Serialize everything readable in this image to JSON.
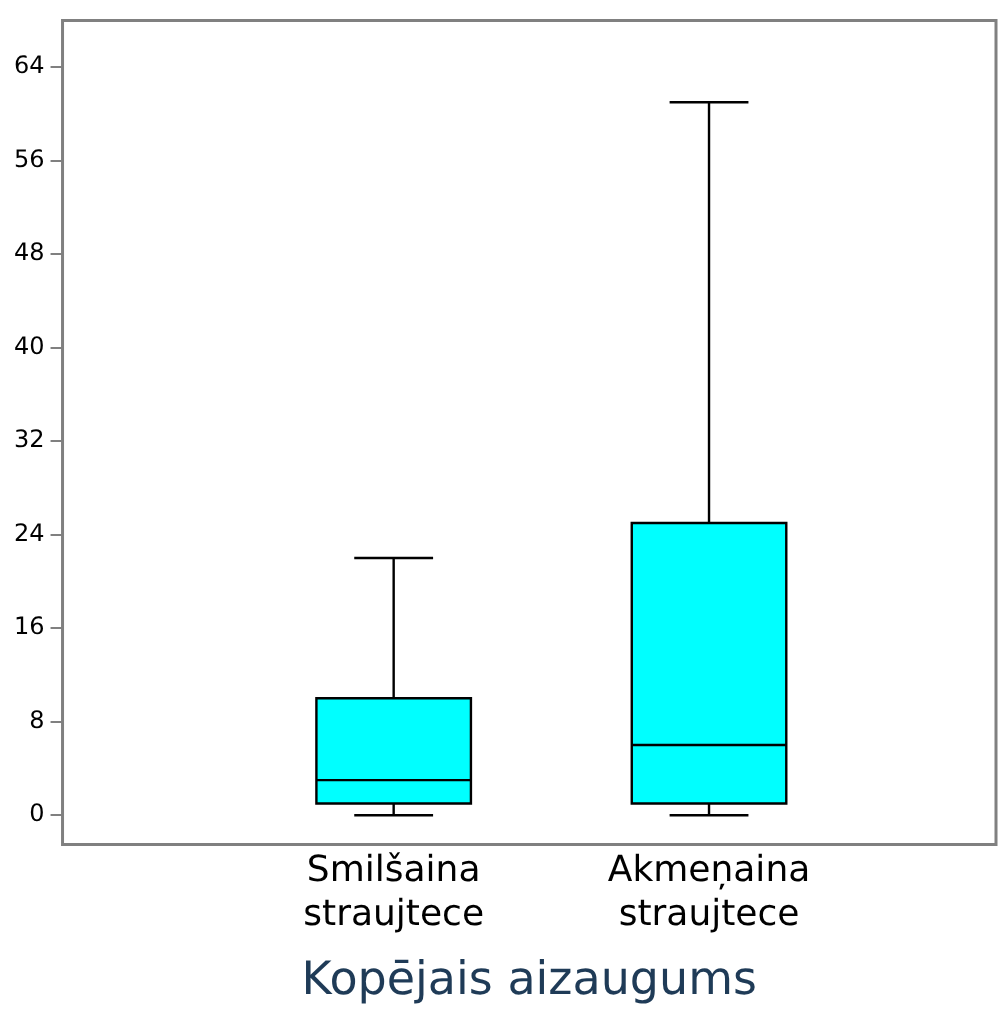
{
  "chart_data": {
    "type": "box",
    "xlabel": "Kopējais aizaugums",
    "categories": [
      "Smilšaina straujtece",
      "Akmeņaina straujtece"
    ],
    "series": [
      {
        "color": "#00ffff",
        "boxes": [
          {
            "low": 0,
            "q1": 1,
            "median": 3,
            "q3": 10,
            "high": 22
          },
          {
            "low": 0,
            "q1": 1,
            "median": 6,
            "q3": 25,
            "high": 61
          }
        ]
      }
    ],
    "ylim": [
      -2.5,
      68
    ],
    "yticks": [
      0,
      8,
      16,
      24,
      32,
      40,
      48,
      56,
      64
    ],
    "grid": false,
    "legend": false
  }
}
